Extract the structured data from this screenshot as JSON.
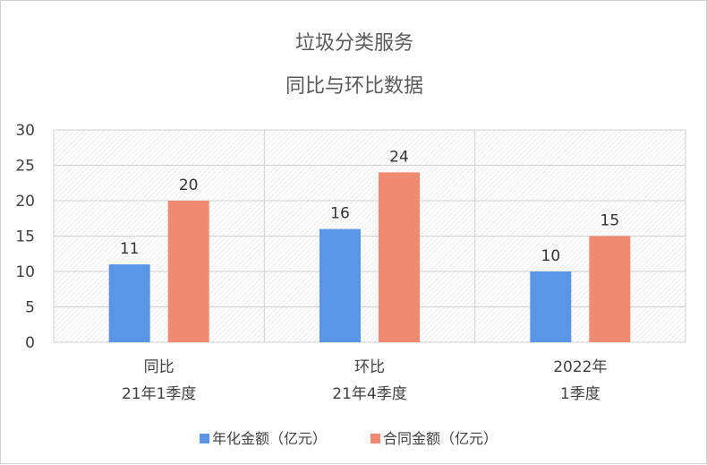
{
  "chart_data": {
    "type": "bar",
    "title": [
      "垃圾分类服务",
      "同比与环比数据"
    ],
    "categories": [
      [
        "同比",
        "21年1季度"
      ],
      [
        "环比",
        "21年4季度"
      ],
      [
        "2022年",
        "1季度"
      ]
    ],
    "series": [
      {
        "name": "年化金额（亿元）",
        "color": "#5b96e6",
        "values": [
          11,
          16,
          10
        ]
      },
      {
        "name": "合同金额（亿元）",
        "color": "#f08a70",
        "values": [
          20,
          24,
          15
        ]
      }
    ],
    "ylim": [
      0,
      30
    ],
    "yticks": [
      0,
      5,
      10,
      15,
      20,
      25,
      30
    ],
    "grid": true,
    "legend": "bottom"
  }
}
